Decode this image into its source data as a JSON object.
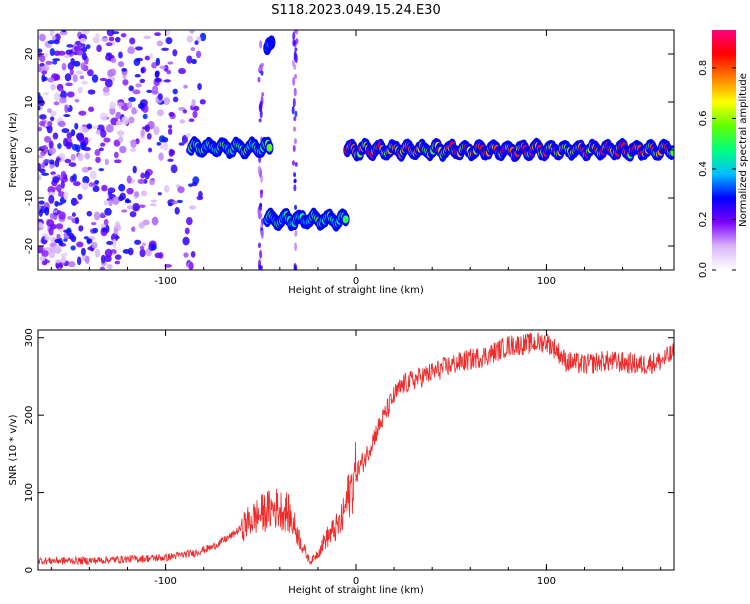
{
  "title": "S118.2023.049.15.24.E30",
  "colors": {
    "snr_line": "#ee2a2a",
    "spectrogram_sparse": "#8a2be2",
    "colorbar_stops": [
      "#ffffff",
      "#d8b4f8",
      "#7a00ff",
      "#0000ff",
      "#00c0ff",
      "#00ff7f",
      "#60ff00",
      "#ffff00",
      "#ff8000",
      "#ff0000",
      "#ff0080"
    ]
  },
  "chart_data": [
    {
      "type": "heatmap",
      "xlabel": "Height of straight line (km)",
      "ylabel": "Frequency (Hz)",
      "xlim": [
        -167,
        167
      ],
      "ylim": [
        -25,
        25
      ],
      "x_ticks": [
        -100,
        0,
        100
      ],
      "y_ticks": [
        20,
        10,
        0,
        -10,
        -20
      ],
      "x_tick_labels": [
        "-100",
        "0",
        "100"
      ],
      "y_tick_labels": [
        "20",
        "10",
        "0",
        "-10",
        "-20"
      ],
      "colorbar": {
        "label": "Normalized spectral amplitude",
        "range": [
          0,
          0.95
        ],
        "ticks": [
          0.0,
          0.2,
          0.4,
          0.6,
          0.8
        ],
        "tick_labels": [
          "0.0",
          "0.2",
          "0.4",
          "0.6",
          "0.8"
        ]
      },
      "tone_segments": [
        {
          "x": [
            -87,
            -45
          ],
          "y": 0.5,
          "amplitude": 0.55
        },
        {
          "x": [
            -47,
            -44
          ],
          "y": 21.5,
          "amplitude": 0.4
        },
        {
          "x": [
            -47,
            -5
          ],
          "y": -14.5,
          "amplitude": 0.5
        },
        {
          "x": [
            -5,
            167
          ],
          "y": 0,
          "amplitude": 0.8
        }
      ],
      "noise_region": {
        "x": [
          -167,
          -80
        ],
        "y": [
          -25,
          25
        ],
        "amplitude": 0.2
      }
    },
    {
      "type": "line",
      "xlabel": "Height of straight line (km)",
      "ylabel": "SNR (10 * v/v)",
      "xlim": [
        -167,
        167
      ],
      "ylim": [
        0,
        310
      ],
      "x_ticks": [
        -100,
        0,
        100
      ],
      "y_ticks": [
        0,
        100,
        200,
        300
      ],
      "x_tick_labels": [
        "-100",
        "0",
        "100"
      ],
      "y_tick_labels": [
        "0",
        "100",
        "200",
        "300"
      ],
      "series": [
        {
          "x": [
            -167,
            -140,
            -120,
            -100,
            -85,
            -75,
            -65,
            -55,
            -48,
            -42,
            -36,
            -32,
            -28,
            -24,
            -20,
            -16,
            -12,
            -8,
            -4,
            0,
            5,
            10,
            15,
            20,
            25,
            30,
            40,
            50,
            60,
            70,
            80,
            90,
            100,
            105,
            110,
            120,
            130,
            140,
            150,
            160,
            167
          ],
          "y": [
            12,
            12,
            14,
            16,
            22,
            30,
            45,
            65,
            75,
            80,
            75,
            55,
            30,
            10,
            22,
            40,
            50,
            60,
            95,
            125,
            145,
            175,
            200,
            225,
            240,
            245,
            255,
            265,
            272,
            278,
            290,
            292,
            295,
            285,
            270,
            265,
            270,
            268,
            265,
            270,
            280
          ]
        }
      ]
    }
  ]
}
